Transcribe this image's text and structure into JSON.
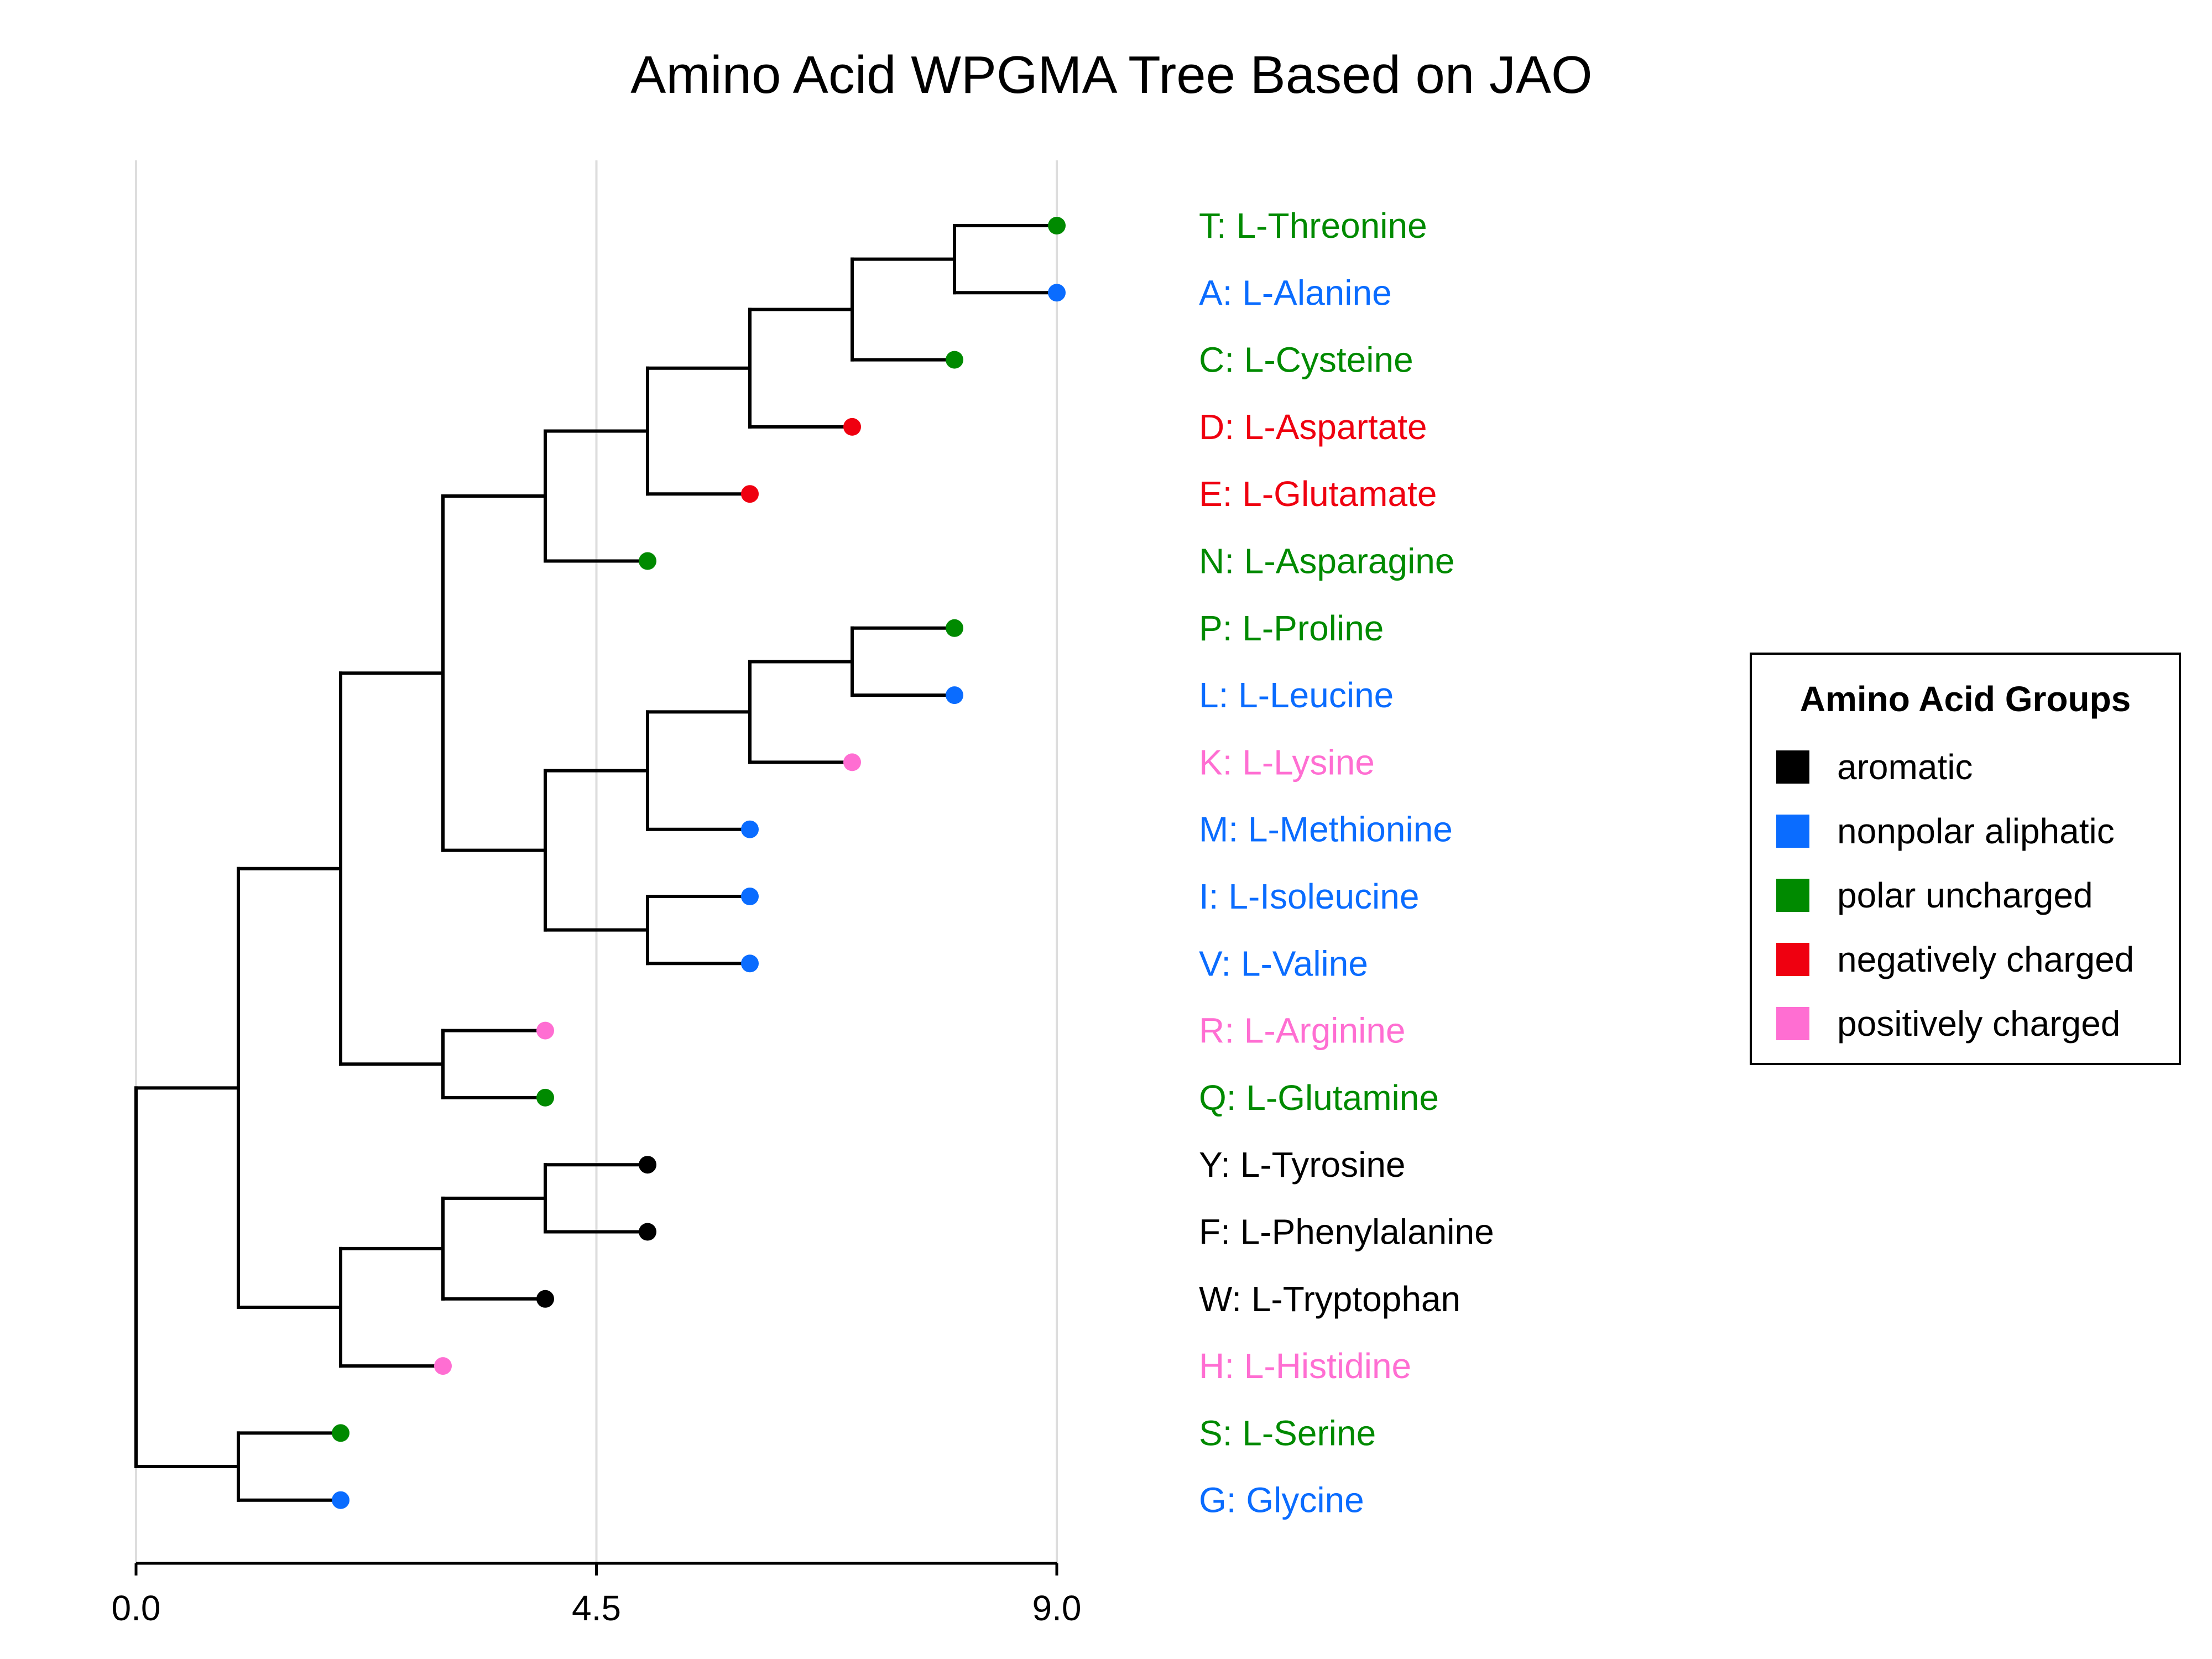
{
  "chart_data": {
    "type": "dendrogram",
    "title": "Amino Acid WPGMA Tree Based on JAO",
    "xlim": [
      0,
      9
    ],
    "x_ticks": [
      {
        "value": 0,
        "label": "0.0"
      },
      {
        "value": 4.5,
        "label": "4.5"
      },
      {
        "value": 9,
        "label": "9.0"
      }
    ],
    "grid": "vertical",
    "leaf_order": [
      "T",
      "A",
      "C",
      "D",
      "E",
      "N",
      "P",
      "L",
      "K",
      "M",
      "I",
      "V",
      "R",
      "Q",
      "Y",
      "F",
      "W",
      "H",
      "S",
      "G"
    ],
    "leaves": [
      {
        "id": "T",
        "label": "T: L-Threonine",
        "group": "polar uncharged",
        "x": 9.0
      },
      {
        "id": "A",
        "label": "A: L-Alanine",
        "group": "nonpolar aliphatic",
        "x": 9.0
      },
      {
        "id": "C",
        "label": "C: L-Cysteine",
        "group": "polar uncharged",
        "x": 8.0
      },
      {
        "id": "D",
        "label": "D: L-Aspartate",
        "group": "negatively charged",
        "x": 7.0
      },
      {
        "id": "E",
        "label": "E: L-Glutamate",
        "group": "negatively charged",
        "x": 6.0
      },
      {
        "id": "N",
        "label": "N: L-Asparagine",
        "group": "polar uncharged",
        "x": 5.0
      },
      {
        "id": "P",
        "label": "P: L-Proline",
        "group": "polar uncharged",
        "x": 8.0
      },
      {
        "id": "L",
        "label": "L: L-Leucine",
        "group": "nonpolar aliphatic",
        "x": 8.0
      },
      {
        "id": "K",
        "label": "K: L-Lysine",
        "group": "positively charged",
        "x": 7.0
      },
      {
        "id": "M",
        "label": "M: L-Methionine",
        "group": "nonpolar aliphatic",
        "x": 6.0
      },
      {
        "id": "I",
        "label": "I: L-Isoleucine",
        "group": "nonpolar aliphatic",
        "x": 6.0
      },
      {
        "id": "V",
        "label": "V: L-Valine",
        "group": "nonpolar aliphatic",
        "x": 6.0
      },
      {
        "id": "R",
        "label": "R: L-Arginine",
        "group": "positively charged",
        "x": 4.0
      },
      {
        "id": "Q",
        "label": "Q: L-Glutamine",
        "group": "polar uncharged",
        "x": 4.0
      },
      {
        "id": "Y",
        "label": "Y: L-Tyrosine",
        "group": "aromatic",
        "x": 5.0
      },
      {
        "id": "F",
        "label": "F: L-Phenylalanine",
        "group": "aromatic",
        "x": 5.0
      },
      {
        "id": "W",
        "label": "W: L-Tryptophan",
        "group": "aromatic",
        "x": 4.0
      },
      {
        "id": "H",
        "label": "H: L-Histidine",
        "group": "positively charged",
        "x": 3.0
      },
      {
        "id": "S",
        "label": "S: L-Serine",
        "group": "polar uncharged",
        "x": 2.0
      },
      {
        "id": "G",
        "label": "G: Glycine",
        "group": "nonpolar aliphatic",
        "x": 2.0
      }
    ],
    "merges": [
      {
        "id": "TA",
        "x": 8.0,
        "children": [
          "T",
          "A"
        ]
      },
      {
        "id": "TAC",
        "x": 7.0,
        "children": [
          "TA",
          "C"
        ]
      },
      {
        "id": "TACD",
        "x": 6.0,
        "children": [
          "TAC",
          "D"
        ]
      },
      {
        "id": "TACDE",
        "x": 5.0,
        "children": [
          "TACD",
          "E"
        ]
      },
      {
        "id": "TACDEN",
        "x": 4.0,
        "children": [
          "TACDE",
          "N"
        ]
      },
      {
        "id": "PL",
        "x": 7.0,
        "children": [
          "P",
          "L"
        ]
      },
      {
        "id": "PLK",
        "x": 6.0,
        "children": [
          "PL",
          "K"
        ]
      },
      {
        "id": "PLKM",
        "x": 5.0,
        "children": [
          "PLK",
          "M"
        ]
      },
      {
        "id": "IV",
        "x": 5.0,
        "children": [
          "I",
          "V"
        ]
      },
      {
        "id": "PLKMIV",
        "x": 4.0,
        "children": [
          "PLKM",
          "IV"
        ]
      },
      {
        "id": "G1",
        "x": 3.0,
        "children": [
          "TACDEN",
          "PLKMIV"
        ]
      },
      {
        "id": "RQ",
        "x": 3.0,
        "children": [
          "R",
          "Q"
        ]
      },
      {
        "id": "G2",
        "x": 2.0,
        "children": [
          "G1",
          "RQ"
        ]
      },
      {
        "id": "YF",
        "x": 4.0,
        "children": [
          "Y",
          "F"
        ]
      },
      {
        "id": "YFW",
        "x": 3.0,
        "children": [
          "YF",
          "W"
        ]
      },
      {
        "id": "YFWH",
        "x": 2.0,
        "children": [
          "YFW",
          "H"
        ]
      },
      {
        "id": "G3",
        "x": 1.0,
        "children": [
          "G2",
          "YFWH"
        ]
      },
      {
        "id": "SG",
        "x": 1.0,
        "children": [
          "S",
          "G"
        ]
      },
      {
        "id": "ROOT",
        "x": 0.0,
        "children": [
          "G3",
          "SG"
        ]
      }
    ],
    "legend": {
      "title": "Amino Acid Groups",
      "position": "right",
      "entries": [
        {
          "label": "aromatic",
          "color": "#000000"
        },
        {
          "label": "nonpolar aliphatic",
          "color": "#0a6cff"
        },
        {
          "label": "polar uncharged",
          "color": "#008a00"
        },
        {
          "label": "negatively charged",
          "color": "#ef0010"
        },
        {
          "label": "positively charged",
          "color": "#ff6ed2"
        }
      ]
    },
    "colors": {
      "aromatic": "#000000",
      "nonpolar aliphatic": "#0a6cff",
      "polar uncharged": "#008a00",
      "negatively charged": "#ef0010",
      "positively charged": "#ff6ed2",
      "branch": "#000000",
      "grid": "#dddddd"
    }
  }
}
